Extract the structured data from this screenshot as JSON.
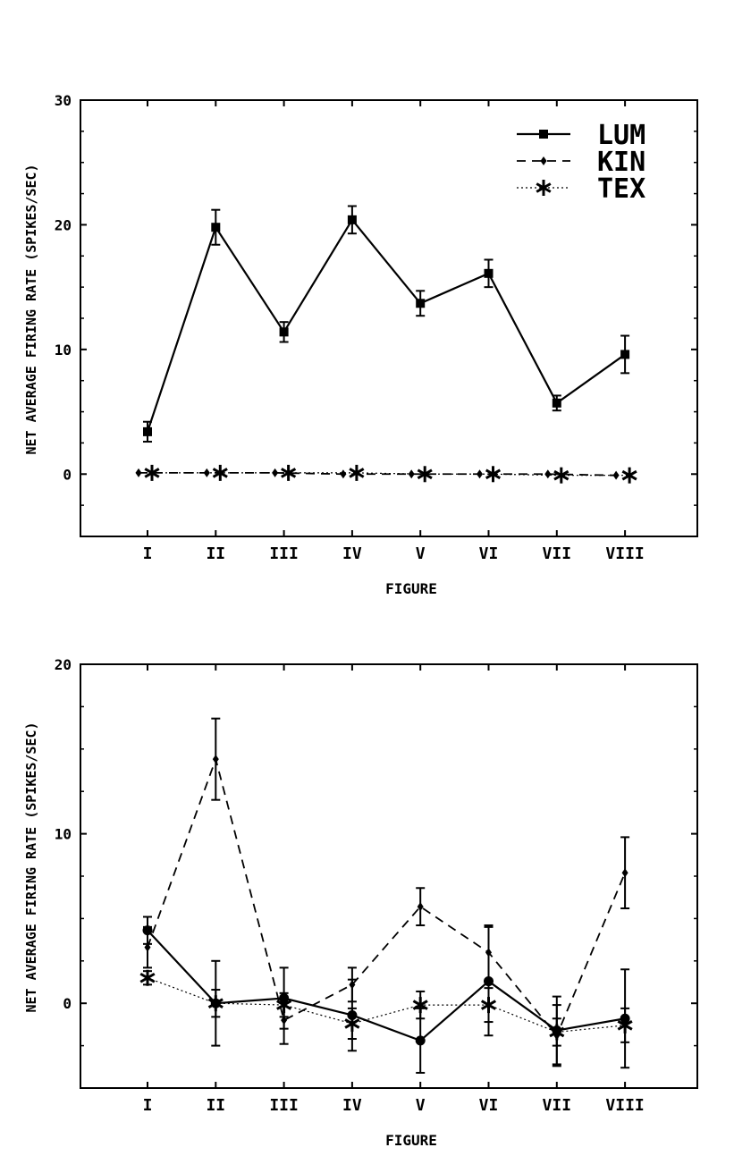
{
  "chart_data": [
    {
      "type": "line",
      "title": "",
      "xlabel": "FIGURE",
      "ylabel": "NET AVERAGE FIRING RATE (SPIKES/SEC)",
      "categories": [
        "I",
        "II",
        "III",
        "IV",
        "V",
        "VI",
        "VII",
        "VIII"
      ],
      "ylim": [
        -5,
        30
      ],
      "y_ticks": [
        0,
        10,
        20,
        30
      ],
      "legend_position": "top-right",
      "series": [
        {
          "name": "LUM",
          "line_style": "solid",
          "marker": "square",
          "values": [
            3.4,
            19.8,
            11.4,
            20.4,
            13.7,
            16.1,
            5.7,
            9.6
          ],
          "errors": [
            0.8,
            1.4,
            0.8,
            1.1,
            1.0,
            1.1,
            0.6,
            1.5
          ]
        },
        {
          "name": "KIN",
          "line_style": "dashed",
          "marker": "diamond",
          "values": [
            0.1,
            0.1,
            0.1,
            0.0,
            0.0,
            0.0,
            0.0,
            -0.1
          ],
          "errors": [
            0,
            0,
            0,
            0,
            0,
            0,
            0,
            0
          ]
        },
        {
          "name": "TEX",
          "line_style": "dotted",
          "marker": "asterisk",
          "values": [
            0.1,
            0.1,
            0.1,
            0.1,
            0.0,
            0.0,
            -0.1,
            -0.1
          ],
          "errors": [
            0,
            0,
            0,
            0,
            0,
            0,
            0,
            0
          ]
        }
      ]
    },
    {
      "type": "line",
      "title": "",
      "xlabel": "FIGURE",
      "ylabel": "NET AVERAGE FIRING RATE (SPIKES/SEC)",
      "categories": [
        "I",
        "II",
        "III",
        "IV",
        "V",
        "VI",
        "VII",
        "VIII"
      ],
      "ylim": [
        -5,
        20
      ],
      "y_ticks": [
        0,
        10,
        20
      ],
      "series": [
        {
          "line_style": "solid",
          "marker": "circle",
          "values": [
            4.3,
            0.0,
            0.3,
            -0.7,
            -2.2,
            1.3,
            -1.6,
            -0.9
          ],
          "errors": [
            0.8,
            2.5,
            1.8,
            2.1,
            1.9,
            3.2,
            2.0,
            2.9
          ]
        },
        {
          "line_style": "dashed",
          "marker": "diamond",
          "values": [
            3.3,
            14.4,
            -1.0,
            1.1,
            5.7,
            3.0,
            -1.9,
            7.7
          ],
          "errors": [
            1.2,
            2.4,
            1.4,
            1.0,
            1.1,
            1.6,
            1.8,
            2.1
          ]
        },
        {
          "line_style": "dotted",
          "marker": "asterisk",
          "values": [
            1.5,
            0.0,
            -0.1,
            -1.2,
            -0.1,
            -0.1,
            -1.7,
            -1.3
          ],
          "errors": [
            0.4,
            0.8,
            0.7,
            0.9,
            0.8,
            1.0,
            0.8,
            1.0
          ]
        }
      ]
    }
  ]
}
